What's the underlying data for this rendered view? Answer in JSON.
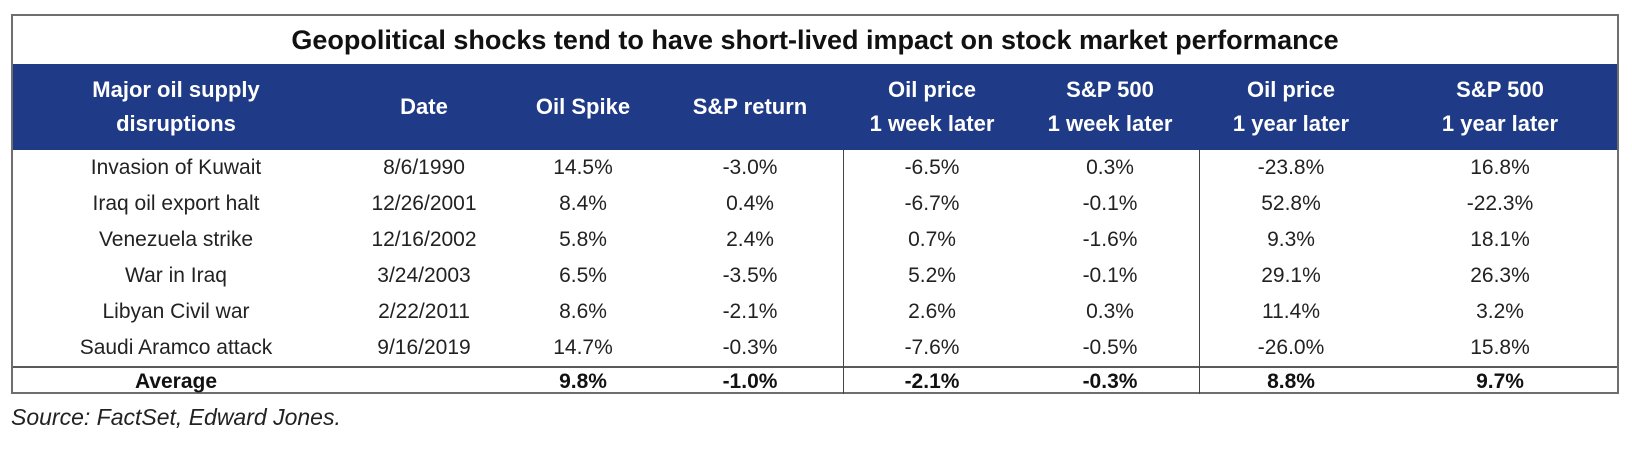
{
  "chart_data": {
    "type": "table",
    "title": "Geopolitical shocks tend to have short-lived impact on stock market performance",
    "columns": [
      "Major oil supply\ndisruptions",
      "Date",
      "Oil Spike",
      "S&P return",
      "Oil price\n1 week later",
      "S&P 500\n1 week later",
      "Oil price\n1 year later",
      "S&P 500\n1 year later"
    ],
    "rows": [
      [
        "Invasion of Kuwait",
        "8/6/1990",
        "14.5%",
        "-3.0%",
        "-6.5%",
        "0.3%",
        "-23.8%",
        "16.8%"
      ],
      [
        "Iraq oil export halt",
        "12/26/2001",
        "8.4%",
        "0.4%",
        "-6.7%",
        "-0.1%",
        "52.8%",
        "-22.3%"
      ],
      [
        "Venezuela strike",
        "12/16/2002",
        "5.8%",
        "2.4%",
        "0.7%",
        "-1.6%",
        "9.3%",
        "18.1%"
      ],
      [
        "War in Iraq",
        "3/24/2003",
        "6.5%",
        "-3.5%",
        "5.2%",
        "-0.1%",
        "29.1%",
        "26.3%"
      ],
      [
        "Libyan Civil war",
        "2/22/2011",
        "8.6%",
        "-2.1%",
        "2.6%",
        "0.3%",
        "11.4%",
        "3.2%"
      ],
      [
        "Saudi Aramco attack",
        "9/16/2019",
        "14.7%",
        "-0.3%",
        "-7.6%",
        "-0.5%",
        "-26.0%",
        "15.8%"
      ]
    ],
    "average": [
      "Average",
      "",
      "9.8%",
      "-1.0%",
      "-2.1%",
      "-0.3%",
      "8.8%",
      "9.7%"
    ],
    "header_color": "#1f3a86",
    "header_text_color": "#ffffff"
  },
  "source": "Source: FactSet, Edward Jones."
}
